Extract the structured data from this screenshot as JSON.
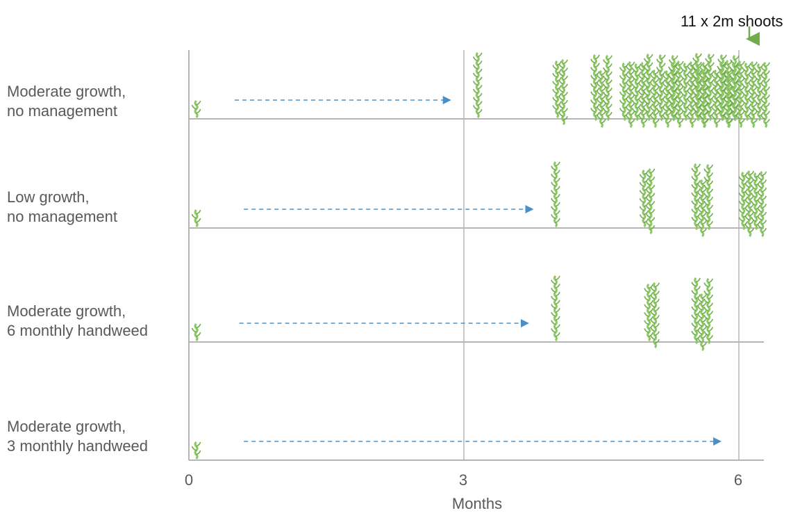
{
  "colors": {
    "shoot": "#8cc665",
    "shoot_dark": "#6fae4a",
    "arrow": "#4a90c8",
    "axis": "#b5b5b5",
    "label": "#595959",
    "callout_arrow": "#6fae4a"
  },
  "callout": {
    "text": "11 x 2m shoots"
  },
  "axis": {
    "title": "Months",
    "ticks": [
      "0",
      "3",
      "6"
    ],
    "range": [
      0,
      6.25
    ]
  },
  "rows": [
    {
      "line1": "Moderate growth,",
      "line2": "no management",
      "shoots": [
        {
          "month": 0.05,
          "count": 1,
          "size": "small"
        },
        {
          "month": 3.15,
          "count": 1,
          "size": "tall"
        },
        {
          "month": 4.05,
          "count": 2,
          "size": "tall"
        },
        {
          "month": 4.5,
          "count": 3,
          "size": "tall"
        },
        {
          "month": 4.85,
          "count": 4,
          "size": "tall"
        },
        {
          "month": 5.15,
          "count": 5,
          "size": "tall"
        },
        {
          "month": 5.45,
          "count": 6,
          "size": "tall"
        },
        {
          "month": 5.75,
          "count": 7,
          "size": "tall"
        },
        {
          "month": 6.05,
          "count": 8,
          "size": "tall"
        }
      ],
      "arrow": [
        0.5,
        2.85
      ]
    },
    {
      "line1": "Low growth,",
      "line2": "no management",
      "shoots": [
        {
          "month": 0.05,
          "count": 1,
          "size": "small"
        },
        {
          "month": 4.0,
          "count": 1,
          "size": "tall"
        },
        {
          "month": 5.0,
          "count": 2,
          "size": "tall"
        },
        {
          "month": 5.6,
          "count": 3,
          "size": "tall"
        },
        {
          "month": 6.15,
          "count": 4,
          "size": "tall"
        }
      ],
      "arrow": [
        0.6,
        3.75
      ]
    },
    {
      "line1": "Moderate growth,",
      "line2": "6 monthly handweed",
      "shoots": [
        {
          "month": 0.05,
          "count": 1,
          "size": "small"
        },
        {
          "month": 4.0,
          "count": 1,
          "size": "tall"
        },
        {
          "month": 5.05,
          "count": 2,
          "size": "tall"
        },
        {
          "month": 5.6,
          "count": 3,
          "size": "tall"
        }
      ],
      "arrow": [
        0.55,
        3.7
      ]
    },
    {
      "line1": "Moderate growth,",
      "line2": "3 monthly handweed",
      "shoots": [
        {
          "month": 0.05,
          "count": 1,
          "size": "small"
        }
      ],
      "arrow": [
        0.6,
        5.8
      ]
    }
  ]
}
